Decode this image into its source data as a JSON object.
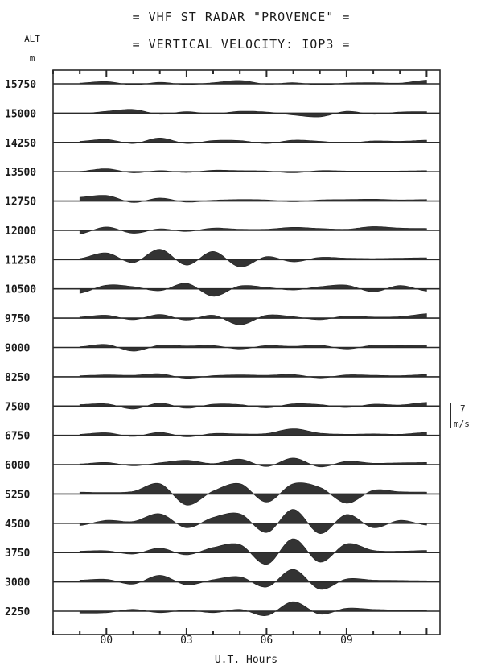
{
  "title_line1": "= VHF ST RADAR \"PROVENCE\" =",
  "title_line2": "= VERTICAL VELOCITY: IOP3 =",
  "y_axis_label": "ALT",
  "y_axis_unit": "m",
  "x_axis_label": "U.T. Hours",
  "scale_bar": {
    "value": "7",
    "unit": "m/s"
  },
  "chart_data": {
    "type": "line",
    "title": "VHF ST RADAR \"PROVENCE\" / VERTICAL VELOCITY: IOP3",
    "xlabel": "U.T. Hours",
    "ylabel": "ALT m",
    "x_ticks": [
      "00",
      "03",
      "06",
      "09"
    ],
    "x_tick_hours": [
      0,
      3,
      6,
      9
    ],
    "xlim": [
      -2,
      12.5
    ],
    "y_units": "m/s",
    "velocity_scale_mps": 7,
    "x_hours": [
      -1,
      0,
      1,
      2,
      3,
      4,
      5,
      6,
      7,
      8,
      9,
      10,
      11,
      12
    ],
    "altitudes_m": [
      15750,
      15000,
      14250,
      13500,
      12750,
      12000,
      11250,
      10500,
      9750,
      9000,
      8250,
      7500,
      6750,
      6000,
      5250,
      4500,
      3750,
      3000,
      2250
    ],
    "series": [
      {
        "name": "15750",
        "values": [
          0.2,
          0.6,
          -0.3,
          0.4,
          -0.2,
          0.3,
          0.9,
          -0.1,
          0.3,
          -0.3,
          0.2,
          0.3,
          0.2,
          1.0
        ]
      },
      {
        "name": "15000",
        "values": [
          -0.2,
          0.5,
          1.0,
          -0.3,
          0.4,
          -0.2,
          0.5,
          0.3,
          -0.5,
          -1.0,
          0.5,
          -0.3,
          0.3,
          0.4
        ]
      },
      {
        "name": "14250",
        "values": [
          0.3,
          0.8,
          -0.3,
          1.2,
          -0.3,
          0.5,
          0.5,
          -0.3,
          0.6,
          0.3,
          -0.2,
          0.4,
          0.3,
          0.6
        ]
      },
      {
        "name": "13500",
        "values": [
          0.1,
          0.8,
          -0.3,
          0.3,
          -0.2,
          0.4,
          0.3,
          0.2,
          -0.3,
          0.3,
          0.2,
          0.2,
          0.2,
          0.3
        ]
      },
      {
        "name": "12750",
        "values": [
          1.0,
          1.5,
          -0.4,
          0.8,
          -0.3,
          0.2,
          0.4,
          0.3,
          -0.2,
          0.3,
          0.4,
          0.5,
          0.3,
          0.4
        ]
      },
      {
        "name": "12000",
        "values": [
          -1.0,
          0.9,
          -0.8,
          0.4,
          -0.3,
          0.6,
          0.3,
          0.3,
          0.8,
          0.5,
          0.3,
          1.0,
          0.6,
          0.5
        ]
      },
      {
        "name": "11250",
        "values": [
          0.3,
          1.8,
          -0.8,
          2.8,
          -1.5,
          2.2,
          -2.0,
          0.8,
          -0.6,
          0.6,
          0.4,
          0.3,
          0.4,
          0.5
        ]
      },
      {
        "name": "10500",
        "values": [
          -1.2,
          1.0,
          0.6,
          -0.5,
          1.5,
          -2.0,
          0.8,
          0.4,
          -0.3,
          0.6,
          1.0,
          -0.8,
          0.9,
          -0.6
        ]
      },
      {
        "name": "9750",
        "values": [
          0.3,
          0.8,
          -0.4,
          1.0,
          -0.5,
          0.8,
          -1.8,
          0.8,
          0.4,
          -0.4,
          0.6,
          0.3,
          0.4,
          1.2
        ]
      },
      {
        "name": "9000",
        "values": [
          0.2,
          0.8,
          -1.0,
          0.6,
          0.4,
          0.5,
          -0.4,
          0.5,
          0.3,
          0.6,
          -0.4,
          0.6,
          0.5,
          0.7
        ]
      },
      {
        "name": "8250",
        "values": [
          0.3,
          0.5,
          0.4,
          0.8,
          -0.4,
          0.3,
          0.5,
          0.4,
          0.6,
          -0.3,
          0.5,
          0.4,
          0.3,
          0.6
        ]
      },
      {
        "name": "7500",
        "values": [
          0.4,
          0.6,
          -0.8,
          0.8,
          -0.6,
          0.5,
          0.4,
          -0.5,
          0.6,
          0.4,
          -0.4,
          0.5,
          0.3,
          1.0
        ]
      },
      {
        "name": "6750",
        "values": [
          0.3,
          0.7,
          -0.3,
          0.8,
          -0.4,
          0.5,
          0.4,
          0.5,
          1.8,
          0.6,
          0.3,
          0.4,
          0.3,
          0.8
        ]
      },
      {
        "name": "6000",
        "values": [
          0.2,
          0.6,
          -0.3,
          0.5,
          1.2,
          0.3,
          1.5,
          -0.5,
          1.8,
          -0.6,
          0.9,
          0.4,
          0.5,
          0.6
        ]
      },
      {
        "name": "5250",
        "values": [
          0.5,
          0.4,
          0.7,
          2.8,
          -3.0,
          0.8,
          2.8,
          -2.2,
          2.8,
          1.8,
          -2.5,
          1.0,
          0.6,
          0.5
        ]
      },
      {
        "name": "4500",
        "values": [
          -0.6,
          0.8,
          0.5,
          2.6,
          -1.2,
          1.6,
          2.6,
          -2.5,
          3.8,
          -2.8,
          2.4,
          -1.2,
          0.8,
          -0.5
        ]
      },
      {
        "name": "3750",
        "values": [
          0.4,
          0.5,
          -0.4,
          1.2,
          -0.6,
          1.4,
          2.2,
          -3.2,
          3.8,
          -2.6,
          2.4,
          0.6,
          0.4,
          0.6
        ]
      },
      {
        "name": "3000",
        "values": [
          0.5,
          0.7,
          -0.6,
          1.8,
          -0.8,
          0.6,
          1.4,
          -1.4,
          3.4,
          -2.0,
          0.8,
          0.5,
          0.4,
          0.3
        ]
      },
      {
        "name": "2250",
        "values": [
          -0.5,
          -0.4,
          0.5,
          -0.4,
          0.3,
          -0.4,
          0.5,
          -1.2,
          2.6,
          -0.8,
          0.8,
          0.5,
          0.3,
          0.2
        ]
      }
    ]
  }
}
